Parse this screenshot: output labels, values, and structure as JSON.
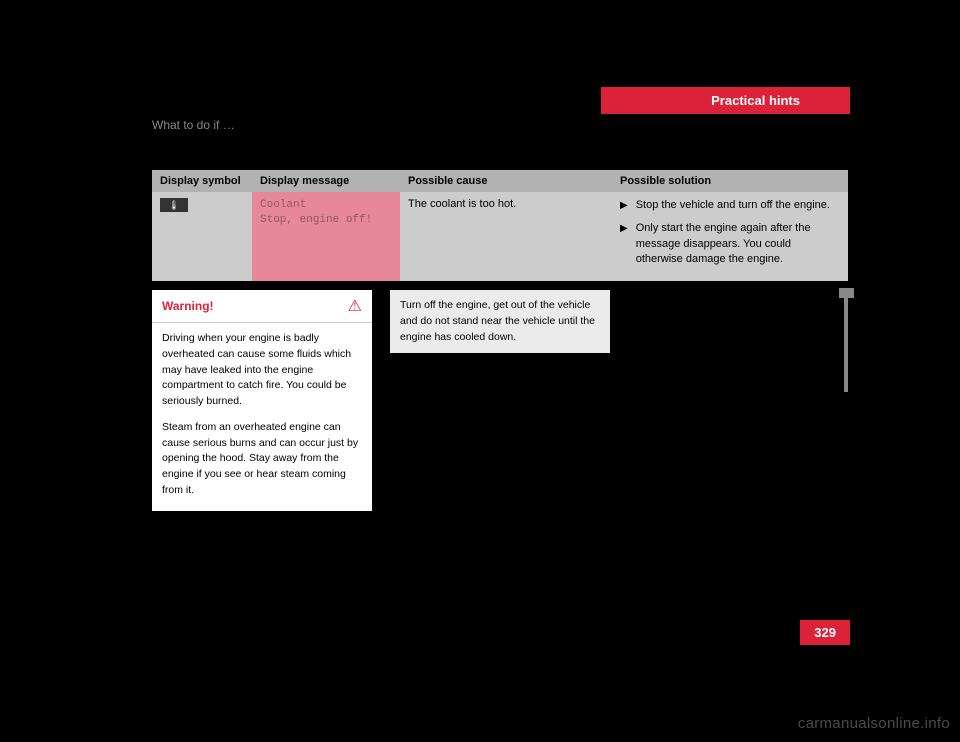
{
  "header": {
    "tab": "Practical hints",
    "subtitle": "What to do if …"
  },
  "table": {
    "headers": {
      "col1": "Display symbol",
      "col2": "Display message",
      "col3": "Possible cause",
      "col4": "Possible solution"
    },
    "row": {
      "symbol_glyph": "🌡",
      "message_line1": "Coolant",
      "message_line2": "Stop, engine off!",
      "cause": "The coolant is too hot.",
      "solutions": [
        "Stop the vehicle and turn off the engine.",
        "Only start the engine again after the message disappears. You could otherwise damage the engine."
      ]
    }
  },
  "warning": {
    "title": "Warning!",
    "icon": "⚠",
    "para1": "Driving when your engine is badly overheated can cause some fluids which may have leaked into the engine compartment to catch fire. You could be seriously burned.",
    "para2": "Steam from an overheated engine can cause serious burns and can occur just by opening the hood. Stay away from the engine if you see or hear steam coming from it."
  },
  "info": {
    "text": "Turn off the engine, get out of the vehicle and do not stand near the vehicle until the engine has cooled down."
  },
  "page_number": "329",
  "watermark": "carmanualsonline.info",
  "colors": {
    "brand_red": "#dc2238",
    "pink_cell": "#e6889a",
    "header_gray": "#b2b2b2",
    "body_gray": "#cccccc",
    "info_gray": "#ebebeb",
    "background": "#000000"
  }
}
